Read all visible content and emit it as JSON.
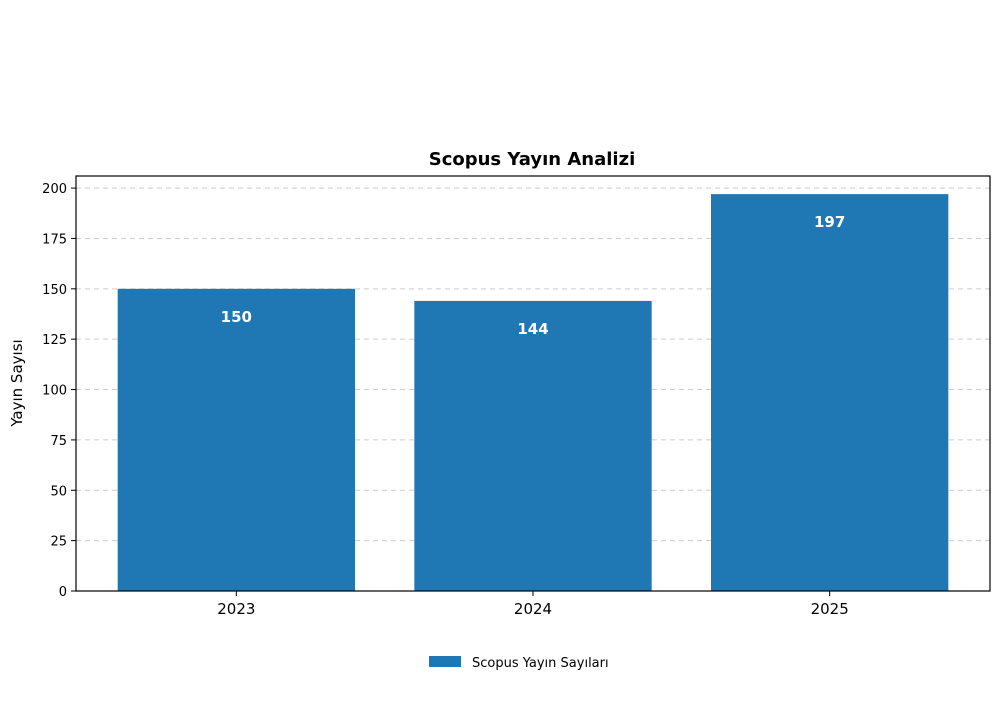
{
  "chart_data": {
    "type": "bar",
    "title": "Scopus Yayın Analizi",
    "xlabel": "",
    "ylabel": "Yayın Sayısı",
    "categories": [
      "2023",
      "2024",
      "2025"
    ],
    "series": [
      {
        "name": "Scopus Yayın Sayıları",
        "values": [
          150,
          144,
          197
        ],
        "color": "#1f77b4"
      }
    ],
    "data_labels": [
      "150",
      "144",
      "197"
    ],
    "ylim": [
      0,
      206
    ],
    "yticks": [
      0,
      25,
      50,
      75,
      100,
      125,
      150,
      175,
      200
    ],
    "ytick_labels": [
      "0",
      "25",
      "50",
      "75",
      "100",
      "125",
      "150",
      "175",
      "200"
    ],
    "grid": true,
    "legend_position": "bottom-center"
  }
}
